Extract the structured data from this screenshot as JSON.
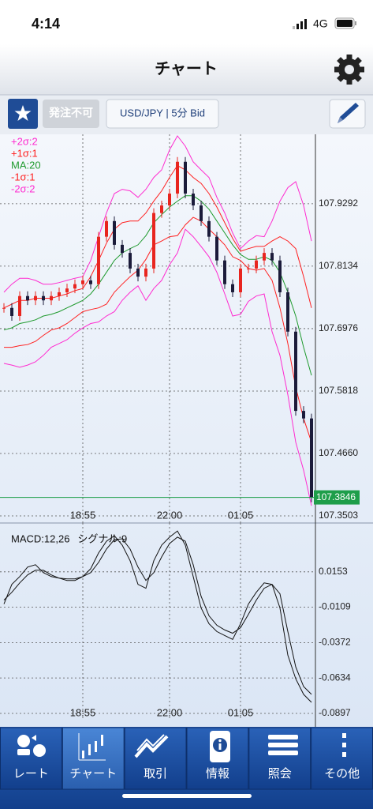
{
  "status_bar": {
    "time": "4:14",
    "network": "4G"
  },
  "header": {
    "title": "チャート"
  },
  "toolbar": {
    "order_status": "発注不可",
    "symbol": "USD/JPY | 5分 Bid"
  },
  "chart_data": [
    {
      "type": "candlestick",
      "categories": [
        null,
        null,
        null,
        null,
        null,
        null,
        null,
        null,
        null,
        null,
        "18:55",
        null,
        null,
        null,
        null,
        null,
        null,
        null,
        null,
        null,
        null,
        "22:00",
        null,
        null,
        null,
        null,
        null,
        null,
        null,
        null,
        "01:05",
        null,
        null,
        null,
        null,
        null,
        null,
        null,
        null,
        null
      ],
      "close": [
        107.736,
        107.721,
        107.758,
        107.75,
        107.758,
        107.75,
        107.758,
        107.765,
        107.772,
        107.78,
        107.787,
        107.78,
        107.868,
        107.897,
        107.853,
        107.838,
        107.809,
        107.794,
        107.809,
        107.912,
        107.926,
        107.948,
        108.007,
        107.948,
        107.926,
        107.897,
        107.868,
        107.824,
        107.78,
        107.765,
        107.809,
        107.809,
        107.824,
        107.838,
        107.824,
        107.765,
        107.692,
        107.545,
        107.531,
        107.3846
      ],
      "up_color": "#e8251f",
      "down_color": "#1b1b3a",
      "series": [
        {
          "name": "+2σ:2",
          "color": "#ff2bd0",
          "values": [
            107.765,
            107.78,
            107.791,
            107.791,
            107.787,
            107.78,
            107.78,
            107.783,
            107.787,
            107.791,
            107.794,
            107.824,
            107.868,
            107.912,
            107.948,
            107.956,
            107.953,
            107.941,
            107.956,
            107.978,
            107.992,
            108.029,
            108.055,
            108.036,
            108.007,
            107.992,
            107.978,
            107.941,
            107.912,
            107.875,
            107.846,
            107.86,
            107.87,
            107.868,
            107.897,
            107.934,
            107.959,
            107.97,
            107.926,
            107.86
          ]
        },
        {
          "name": "+1σ:1",
          "color": "#ff2020",
          "values": [
            107.736,
            107.743,
            107.75,
            107.75,
            107.754,
            107.754,
            107.754,
            107.758,
            107.762,
            107.768,
            107.772,
            107.794,
            107.824,
            107.856,
            107.882,
            107.894,
            107.897,
            107.897,
            107.912,
            107.934,
            107.953,
            107.978,
            108.0,
            107.992,
            107.978,
            107.967,
            107.948,
            107.923,
            107.894,
            107.865,
            107.841,
            107.846,
            107.85,
            107.85,
            107.86,
            107.868,
            107.86,
            107.846,
            107.794,
            107.736
          ]
        },
        {
          "name": "MA:20",
          "color": "#1f9a2e",
          "values": [
            107.695,
            107.699,
            107.707,
            107.71,
            107.714,
            107.721,
            107.724,
            107.729,
            107.736,
            107.743,
            107.75,
            107.762,
            107.78,
            107.802,
            107.824,
            107.838,
            107.846,
            107.853,
            107.87,
            107.894,
            107.909,
            107.923,
            107.934,
            107.944,
            107.944,
            107.934,
            107.919,
            107.897,
            107.875,
            107.853,
            107.835,
            107.826,
            107.826,
            107.831,
            107.824,
            107.802,
            107.765,
            107.721,
            107.663,
            107.611
          ]
        },
        {
          "name": "-1σ:1",
          "color": "#ff2020",
          "values": [
            107.663,
            107.663,
            107.666,
            107.668,
            107.674,
            107.685,
            107.695,
            107.699,
            107.707,
            107.718,
            107.729,
            107.733,
            107.736,
            107.743,
            107.765,
            107.78,
            107.794,
            107.806,
            107.826,
            107.853,
            107.86,
            107.868,
            107.87,
            107.89,
            107.904,
            107.897,
            107.882,
            107.868,
            107.853,
            107.831,
            107.824,
            107.809,
            107.806,
            107.809,
            107.787,
            107.736,
            107.67,
            107.589,
            107.531,
            107.487
          ]
        },
        {
          "name": "-2σ:2",
          "color": "#ff2bd0",
          "values": [
            107.633,
            107.63,
            107.626,
            107.63,
            107.636,
            107.648,
            107.663,
            107.67,
            107.677,
            107.689,
            107.699,
            107.707,
            107.71,
            107.721,
            107.729,
            107.75,
            107.765,
            107.777,
            107.75,
            107.772,
            107.787,
            107.816,
            107.838,
            107.882,
            107.868,
            107.85,
            107.831,
            107.802,
            107.762,
            107.721,
            107.724,
            107.748,
            107.758,
            107.762,
            107.692,
            107.648,
            107.575,
            107.487,
            107.435,
            107.369
          ]
        }
      ],
      "ylim": [
        107.3503,
        108.055
      ],
      "yticks": [
        107.3503,
        {
          "value": 107.466,
          "label": "107.4660"
        },
        107.5818,
        107.6976,
        107.8134,
        107.9292
      ],
      "grid": true,
      "last_price": 107.3846,
      "last_price_color": "#1e9e4a"
    },
    {
      "type": "line",
      "categories": [
        null,
        null,
        null,
        null,
        null,
        null,
        null,
        null,
        null,
        null,
        "18:55",
        null,
        null,
        null,
        null,
        null,
        null,
        null,
        null,
        null,
        null,
        "22:00",
        null,
        null,
        null,
        null,
        null,
        null,
        null,
        null,
        "01:05",
        null,
        null,
        null,
        null,
        null,
        null,
        null,
        null,
        null
      ],
      "series": [
        {
          "name": "MACD:12,26",
          "color": "#111111",
          "values": [
            -0.0086,
            0.006,
            0.0118,
            0.0188,
            0.0206,
            0.0147,
            0.0118,
            0.0106,
            0.0089,
            0.0089,
            0.0118,
            0.0176,
            0.0293,
            0.038,
            0.0421,
            0.0351,
            0.0235,
            0.006,
            0.0031,
            0.0235,
            0.0351,
            0.041,
            0.0456,
            0.0351,
            0.0118,
            -0.0115,
            -0.0232,
            -0.029,
            -0.0319,
            -0.0348,
            -0.0232,
            -0.0086,
            0.0001,
            0.0071,
            0.006,
            -0.0115,
            -0.0465,
            -0.064,
            -0.0756,
            -0.0815
          ]
        },
        {
          "name": "シグナル:9",
          "color": "#111111",
          "values": [
            -0.0057,
            0.0001,
            0.0071,
            0.013,
            0.0165,
            0.0165,
            0.013,
            0.0106,
            0.0101,
            0.0101,
            0.0118,
            0.0147,
            0.0223,
            0.0322,
            0.0392,
            0.0398,
            0.0322,
            0.0188,
            0.0089,
            0.0147,
            0.0264,
            0.0363,
            0.041,
            0.038,
            0.0206,
            -0.0028,
            -0.0173,
            -0.0243,
            -0.0278,
            -0.0302,
            -0.0261,
            -0.0162,
            -0.0057,
            0.0031,
            0.006,
            -0.001,
            -0.029,
            -0.0552,
            -0.0698,
            -0.0756
          ]
        }
      ],
      "ylim": [
        -0.0897,
        0.048
      ],
      "yticks": [
        -0.0897,
        -0.0634,
        -0.0372,
        -0.0109,
        0.0153
      ],
      "grid": true
    }
  ],
  "tab_bar": {
    "tabs": [
      "レート",
      "チャート",
      "取引",
      "情報",
      "照会",
      "その他"
    ],
    "active": 1
  }
}
